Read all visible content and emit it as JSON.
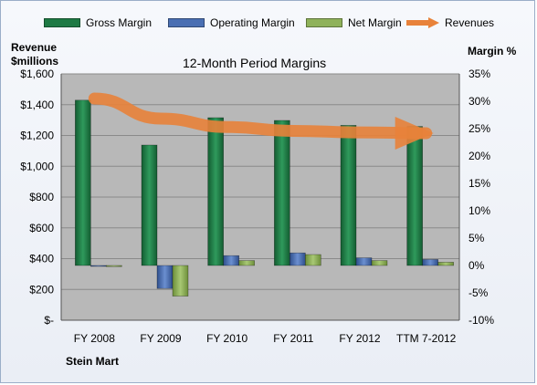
{
  "chart_data": {
    "type": "bar",
    "title": "12-Month Period Margins",
    "company": "Stein Mart",
    "left_axis_title": [
      "Revenue",
      "$millions"
    ],
    "right_axis_title": "Margin %",
    "categories": [
      "FY 2008",
      "FY 2009",
      "FY 2010",
      "FY 2011",
      "FY 2012",
      "TTM 7-2012"
    ],
    "left_ticks": [
      "$-",
      "$200",
      "$400",
      "$600",
      "$800",
      "$1,000",
      "$1,200",
      "$1,400",
      "$1,600"
    ],
    "right_ticks": [
      "-10%",
      "-5%",
      "0%",
      "5%",
      "10%",
      "15%",
      "20%",
      "25%",
      "30%",
      "35%"
    ],
    "ylim_left": [
      0,
      1600
    ],
    "ylim_right": [
      -10,
      35
    ],
    "series": [
      {
        "name": "Gross Margin",
        "axis": "right",
        "color": "#1e7a44",
        "values": [
          30.2,
          22.0,
          27.0,
          26.5,
          25.6,
          25.4
        ]
      },
      {
        "name": "Operating Margin",
        "axis": "right",
        "color": "#4a6fb3",
        "values": [
          0.0,
          -4.2,
          1.8,
          2.3,
          1.4,
          1.1
        ]
      },
      {
        "name": "Net Margin",
        "axis": "right",
        "color": "#8fb25a",
        "values": [
          -0.2,
          -5.6,
          0.9,
          2.0,
          0.9,
          0.6
        ]
      },
      {
        "name": "Revenues",
        "axis": "left",
        "color": "#e8823a",
        "type": "line",
        "values": [
          1440,
          1310,
          1255,
          1230,
          1220,
          1215
        ]
      }
    ],
    "grid": true,
    "legend_position": "top"
  }
}
